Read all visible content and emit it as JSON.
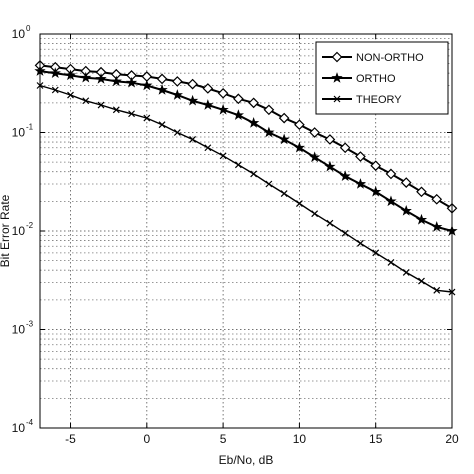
{
  "chart_data": {
    "type": "line",
    "title": "",
    "xlabel": "Eb/No, dB",
    "ylabel": "Bit Error Rate",
    "xlim": [
      -7,
      20
    ],
    "ylim": [
      0.0001,
      1
    ],
    "yscale": "log",
    "grid": true,
    "legend_position": "top-right",
    "x_ticks": [
      "-5",
      "0",
      "5",
      "10",
      "15",
      "20"
    ],
    "y_ticks": [
      {
        "mantissa": "10",
        "exp": "0"
      },
      {
        "mantissa": "10",
        "exp": "-1"
      },
      {
        "mantissa": "10",
        "exp": "-2"
      },
      {
        "mantissa": "10",
        "exp": "-3"
      },
      {
        "mantissa": "10",
        "exp": "-4"
      }
    ],
    "x": [
      -7,
      -6,
      -5,
      -4,
      -3,
      -2,
      -1,
      0,
      1,
      2,
      3,
      4,
      5,
      6,
      7,
      8,
      9,
      10,
      11,
      12,
      13,
      14,
      15,
      16,
      17,
      18,
      19,
      20
    ],
    "series": [
      {
        "name": "NON-ORTHO",
        "marker": "diamond",
        "color": "#000000",
        "values": [
          0.48,
          0.46,
          0.44,
          0.42,
          0.41,
          0.39,
          0.38,
          0.37,
          0.35,
          0.33,
          0.31,
          0.28,
          0.25,
          0.22,
          0.2,
          0.17,
          0.14,
          0.12,
          0.1,
          0.085,
          0.07,
          0.057,
          0.046,
          0.038,
          0.031,
          0.025,
          0.021,
          0.017
        ]
      },
      {
        "name": "ORTHO",
        "marker": "star",
        "color": "#000000",
        "values": [
          0.42,
          0.4,
          0.38,
          0.36,
          0.35,
          0.33,
          0.32,
          0.3,
          0.27,
          0.24,
          0.21,
          0.19,
          0.17,
          0.15,
          0.125,
          0.1,
          0.085,
          0.07,
          0.056,
          0.045,
          0.036,
          0.03,
          0.025,
          0.02,
          0.016,
          0.013,
          0.011,
          0.01
        ]
      },
      {
        "name": "THEORY",
        "marker": "x",
        "color": "#000000",
        "values": [
          0.3,
          0.27,
          0.24,
          0.21,
          0.19,
          0.17,
          0.155,
          0.14,
          0.12,
          0.1,
          0.085,
          0.07,
          0.058,
          0.047,
          0.038,
          0.03,
          0.024,
          0.019,
          0.015,
          0.012,
          0.0095,
          0.0075,
          0.006,
          0.0048,
          0.0038,
          0.0031,
          0.0025,
          0.0024
        ]
      }
    ]
  }
}
